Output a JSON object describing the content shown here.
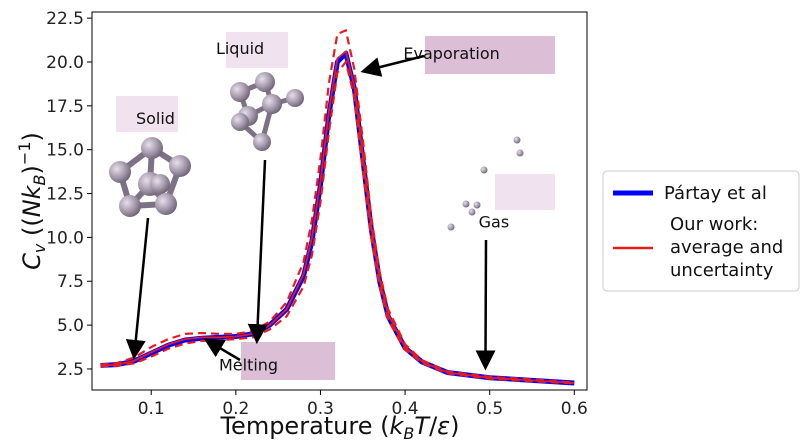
{
  "chart_data": {
    "type": "line",
    "xlabel": "Temperature (k_BT/ε)",
    "ylabel": "C_v ((Nk_B)^-1)",
    "xlim": [
      0.03,
      0.615
    ],
    "ylim": [
      1.3,
      22.85
    ],
    "xticks": [
      0.1,
      0.2,
      0.3,
      0.4,
      0.5,
      0.6
    ],
    "yticks": [
      2.5,
      5.0,
      7.5,
      10.0,
      12.5,
      15.0,
      17.5,
      20.0,
      22.5
    ],
    "grid": false,
    "legend_position": "right",
    "series": [
      {
        "name": "Pártay et al",
        "color": "#0000ff",
        "style": "solid",
        "x": [
          0.04,
          0.06,
          0.08,
          0.1,
          0.12,
          0.14,
          0.16,
          0.18,
          0.2,
          0.22,
          0.24,
          0.26,
          0.28,
          0.29,
          0.3,
          0.31,
          0.32,
          0.33,
          0.34,
          0.35,
          0.36,
          0.37,
          0.38,
          0.4,
          0.42,
          0.45,
          0.5,
          0.55,
          0.6
        ],
        "y": [
          2.7,
          2.75,
          2.95,
          3.4,
          3.85,
          4.15,
          4.25,
          4.3,
          4.35,
          4.5,
          5.0,
          5.9,
          7.8,
          9.8,
          13.0,
          17.0,
          20.0,
          20.5,
          18.5,
          14.5,
          10.5,
          7.5,
          5.5,
          3.7,
          2.9,
          2.3,
          2.0,
          1.85,
          1.7
        ]
      },
      {
        "name": "Our work: average and uncertainty",
        "color": "#e81b1b",
        "style": "solid",
        "x": [
          0.04,
          0.06,
          0.08,
          0.1,
          0.12,
          0.14,
          0.16,
          0.18,
          0.2,
          0.22,
          0.24,
          0.26,
          0.28,
          0.29,
          0.3,
          0.31,
          0.32,
          0.33,
          0.34,
          0.35,
          0.36,
          0.37,
          0.38,
          0.4,
          0.42,
          0.45,
          0.5,
          0.55,
          0.6
        ],
        "y": [
          2.7,
          2.75,
          2.97,
          3.45,
          3.9,
          4.2,
          4.3,
          4.3,
          4.35,
          4.5,
          5.0,
          5.9,
          7.9,
          10.0,
          13.2,
          17.2,
          20.2,
          20.6,
          18.6,
          14.7,
          10.6,
          7.6,
          5.6,
          3.75,
          2.92,
          2.3,
          2.0,
          1.85,
          1.7
        ],
        "upper": [
          2.75,
          2.85,
          3.15,
          3.75,
          4.2,
          4.5,
          4.55,
          4.5,
          4.5,
          4.65,
          5.2,
          6.3,
          8.6,
          11.0,
          14.5,
          18.8,
          21.6,
          21.8,
          19.6,
          15.6,
          11.2,
          8.0,
          5.9,
          3.9,
          3.0,
          2.35,
          2.05,
          1.9,
          1.72
        ],
        "lower": [
          2.65,
          2.68,
          2.82,
          3.2,
          3.65,
          3.95,
          4.1,
          4.15,
          4.2,
          4.3,
          4.75,
          5.5,
          7.2,
          9.0,
          12.0,
          16.0,
          19.4,
          20.0,
          18.0,
          13.9,
          10.0,
          7.2,
          5.3,
          3.6,
          2.85,
          2.25,
          1.95,
          1.8,
          1.68
        ]
      }
    ],
    "annotations": [
      {
        "label": "Solid",
        "text_x": 0.105,
        "text_y": 16.8,
        "arrow_to": [
          0.08,
          3.3
        ]
      },
      {
        "label": "Liquid",
        "text_x": 0.205,
        "text_y": 20.8,
        "arrow_to": [
          0.225,
          4.2
        ]
      },
      {
        "label": "Evaporation",
        "text_x": 0.455,
        "text_y": 20.5,
        "arrow_to": [
          0.353,
          19.5
        ]
      },
      {
        "label": "Gas",
        "text_x": 0.505,
        "text_y": 10.9,
        "arrow_to": [
          0.495,
          2.7
        ]
      },
      {
        "label": "Melting",
        "text_x": 0.215,
        "text_y": 2.75,
        "arrow_to": [
          0.167,
          4.1
        ]
      }
    ]
  },
  "legend": {
    "entries": [
      {
        "label": "Pártay et al",
        "color": "#0000ff"
      },
      {
        "label": "Our work:",
        "color": "#e81b1b"
      },
      {
        "label": "average and",
        "color": ""
      },
      {
        "label": "uncertainty",
        "color": ""
      }
    ]
  }
}
